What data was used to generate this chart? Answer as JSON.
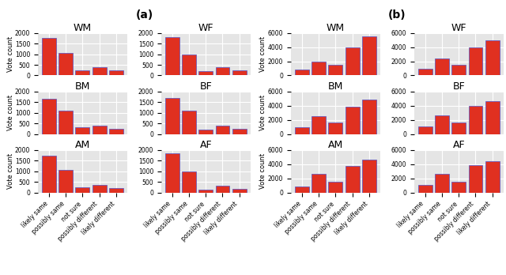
{
  "title_a": "(a)",
  "title_b": "(b)",
  "categories": [
    "likely same",
    "possibly same",
    "not sure",
    "possibly different",
    "likely different"
  ],
  "panel_a": {
    "WM": [
      1750,
      1050,
      250,
      375,
      225
    ],
    "WF": [
      1800,
      1000,
      200,
      375,
      225
    ],
    "BM": [
      1650,
      1100,
      300,
      400,
      250
    ],
    "BF": [
      1700,
      1100,
      200,
      400,
      250
    ],
    "AM": [
      1750,
      1050,
      250,
      375,
      200
    ],
    "AF": [
      1850,
      1000,
      150,
      325,
      175
    ]
  },
  "panel_b": {
    "WM": [
      800,
      2000,
      1500,
      4000,
      5500
    ],
    "WF": [
      900,
      2350,
      1500,
      4000,
      5000
    ],
    "BM": [
      1000,
      2500,
      1600,
      3900,
      4900
    ],
    "BF": [
      1050,
      2600,
      1600,
      4000,
      4600
    ],
    "AM": [
      900,
      2600,
      1500,
      3800,
      4700
    ],
    "AF": [
      1050,
      2600,
      1500,
      3900,
      4400
    ]
  },
  "ylim_a": [
    0,
    2000
  ],
  "ylim_b": [
    0,
    6000
  ],
  "yticks_a": [
    0,
    500,
    1000,
    1500,
    2000
  ],
  "yticks_b": [
    0,
    2000,
    4000,
    6000
  ],
  "bar_color": "#e03020",
  "bar_edge_color": "#5050c8",
  "bg_color": "#e5e5e5",
  "grid_color": "white",
  "ylabel": "Vote count",
  "title_fontsize": 9,
  "label_fontsize": 6,
  "tick_fontsize": 5.5,
  "subtitle_fontsize": 10
}
